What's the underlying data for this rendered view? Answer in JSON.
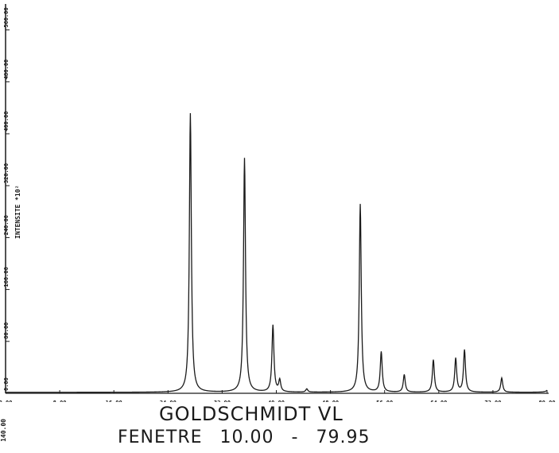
{
  "chart_data": {
    "type": "line",
    "ylabel": "INTENSITE *10²",
    "xlim": [
      0,
      80
    ],
    "ylim": [
      0,
      600
    ],
    "x_ticks": [
      "0.00",
      "8.00",
      "16.00",
      "24.00",
      "32.00",
      "40.00",
      "48.00",
      "56.00",
      "64.00",
      "72.00",
      "80.00"
    ],
    "y_ticks": [
      "0.00",
      "80.00",
      "160.00",
      "240.00",
      "320.00",
      "400.00",
      "480.00",
      "560.00"
    ],
    "peaks": [
      {
        "x": 27.3,
        "y": 430
      },
      {
        "x": 35.3,
        "y": 361
      },
      {
        "x": 39.5,
        "y": 103
      },
      {
        "x": 40.5,
        "y": 18
      },
      {
        "x": 44.5,
        "y": 5
      },
      {
        "x": 52.4,
        "y": 290
      },
      {
        "x": 55.5,
        "y": 62
      },
      {
        "x": 58.9,
        "y": 27
      },
      {
        "x": 63.2,
        "y": 50
      },
      {
        "x": 66.5,
        "y": 52
      },
      {
        "x": 67.8,
        "y": 65
      },
      {
        "x": 73.3,
        "y": 22
      },
      {
        "x": 80.5,
        "y": 30
      }
    ],
    "line_color": "#1a1a1a"
  },
  "caption": {
    "subtitle": "GOLDSCHMIDT VL",
    "window_label": "FENETRE",
    "window_start": "10.00",
    "window_dash": "-",
    "window_end": "79.95",
    "corner_tick": "140.00"
  }
}
